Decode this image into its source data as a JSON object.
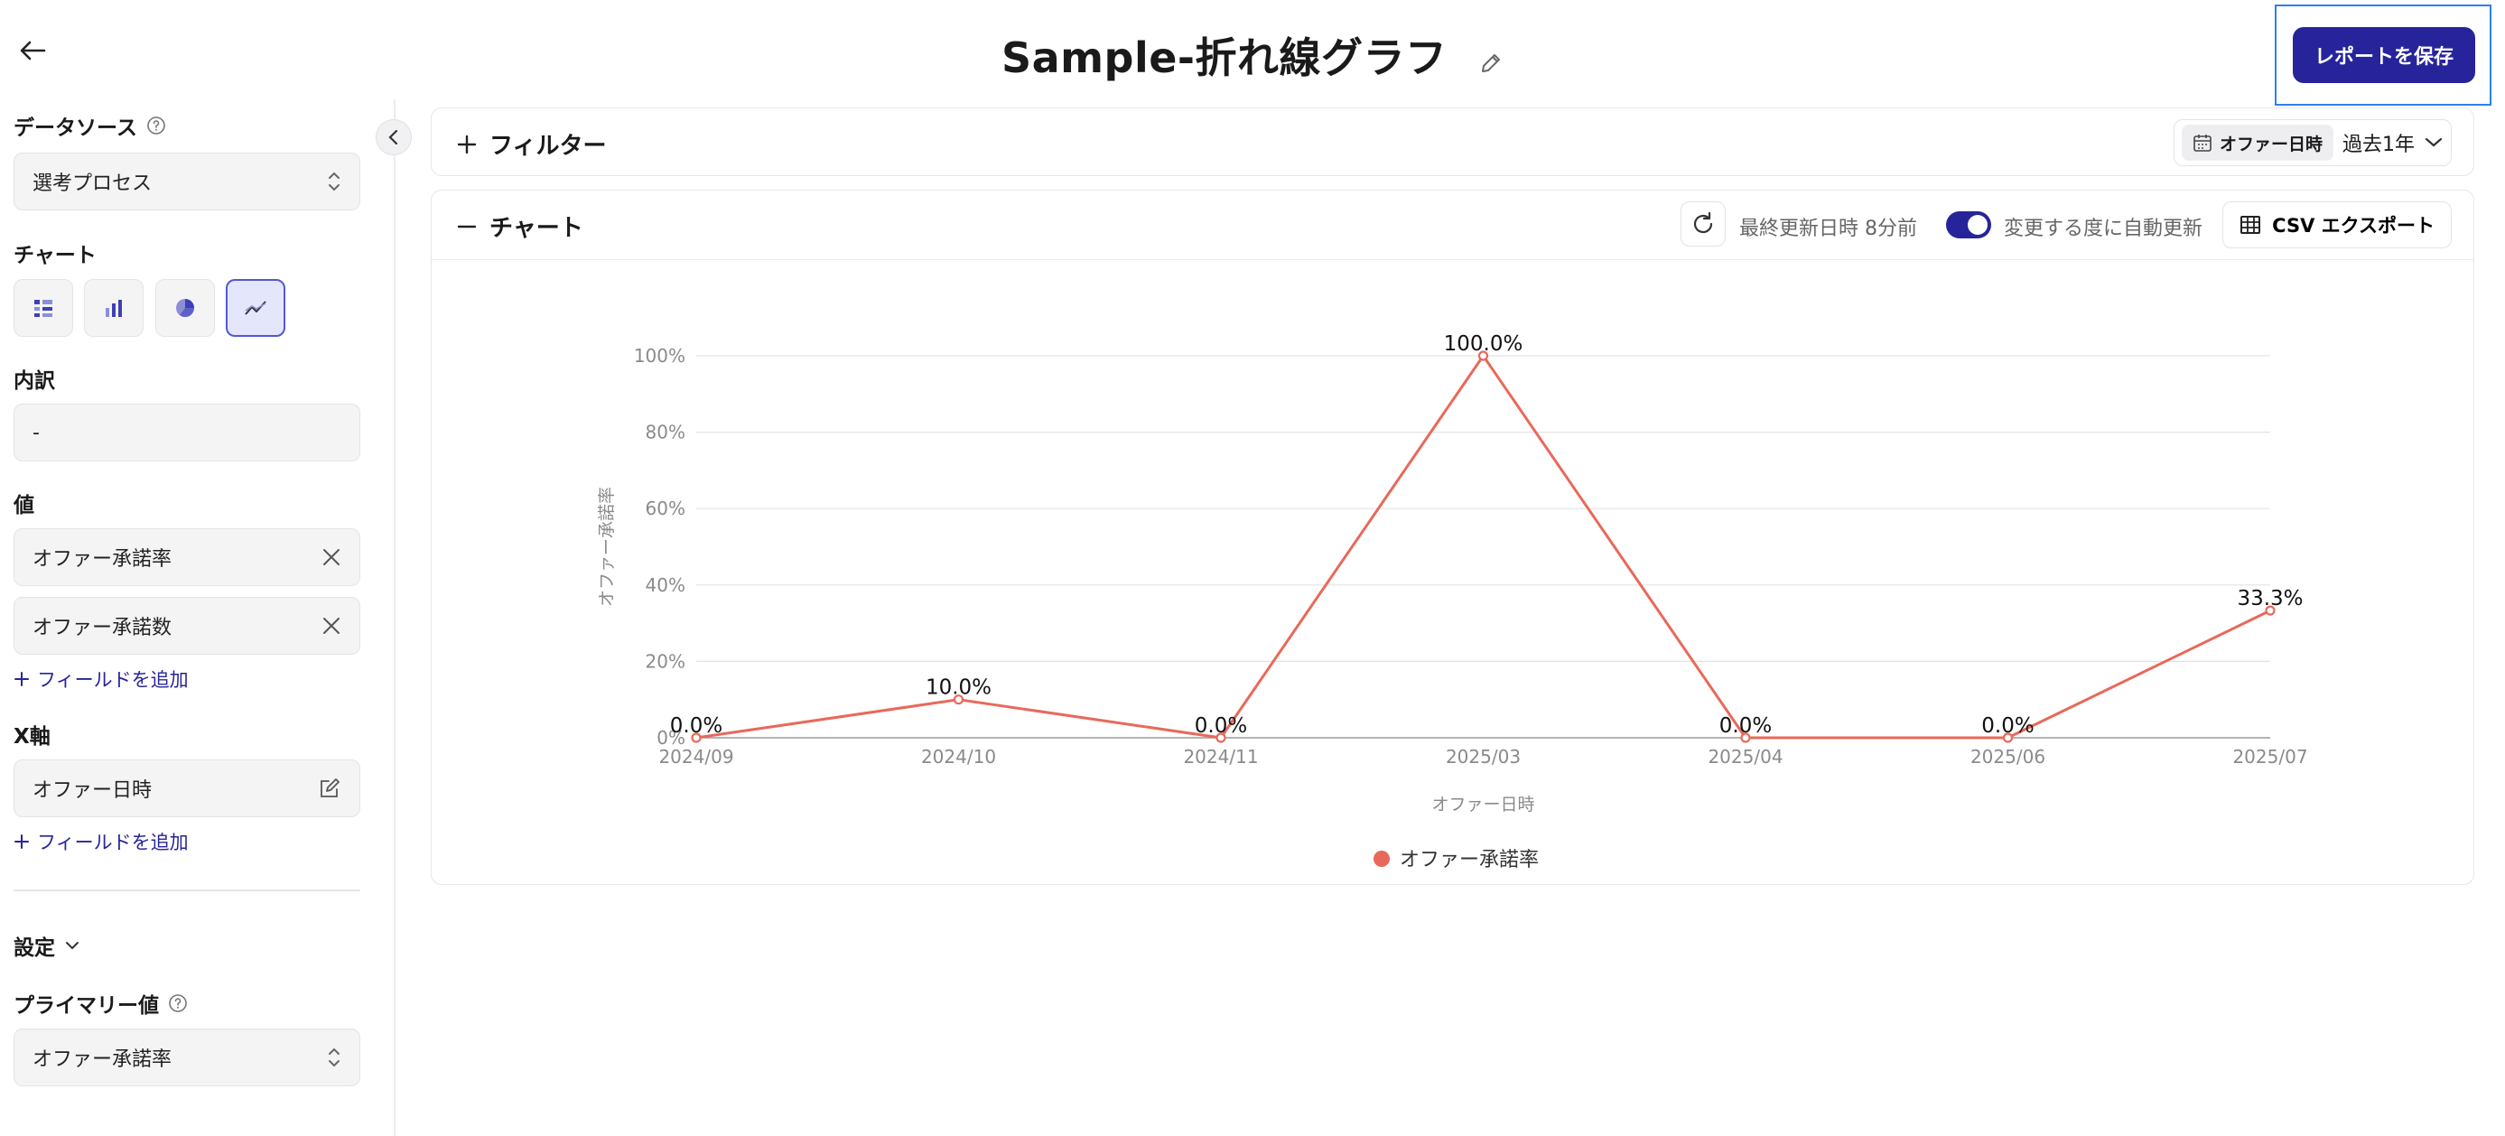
{
  "header": {
    "title": "Sample-折れ線グラフ",
    "save_label": "レポートを保存"
  },
  "sidebar": {
    "data_source": {
      "label": "データソース",
      "value": "選考プロセス"
    },
    "chart": {
      "label": "チャート",
      "types": [
        "table-chart",
        "bar-chart",
        "pie-chart",
        "line-chart"
      ],
      "selected": "line-chart"
    },
    "breakdown": {
      "label": "内訳",
      "value": "-"
    },
    "values": {
      "label": "値",
      "items": [
        "オファー承諾率",
        "オファー承諾数"
      ],
      "add_label": "フィールドを追加"
    },
    "x_axis": {
      "label": "X軸",
      "value": "オファー日時",
      "add_label": "フィールドを追加"
    },
    "settings": {
      "label": "設定"
    },
    "primary_value": {
      "label": "プライマリー値",
      "value": "オファー承諾率"
    }
  },
  "filter": {
    "label": "フィルター",
    "date_field": "オファー日時",
    "range": "過去1年"
  },
  "chart_panel": {
    "label": "チャート",
    "updated": "最終更新日時 8分前",
    "auto_update": "変更する度に自動更新",
    "auto_update_on": true,
    "csv_label": "CSV エクスポート"
  },
  "colors": {
    "accent": "#27249b",
    "series": "#e8695a"
  },
  "chart_data": {
    "type": "line",
    "x": [
      "2024/09",
      "2024/10",
      "2024/11",
      "2025/03",
      "2025/04",
      "2025/06",
      "2025/07"
    ],
    "series": [
      {
        "name": "オファー承諾率",
        "values": [
          0,
          10,
          0,
          100,
          0,
          0,
          33.3
        ]
      }
    ],
    "data_labels": [
      "0.0%",
      "10.0%",
      "0.0%",
      "100.0%",
      "0.0%",
      "0.0%",
      "33.3%"
    ],
    "y_ticks": [
      "0%",
      "20%",
      "40%",
      "60%",
      "80%",
      "100%"
    ],
    "ylim": [
      0,
      100
    ],
    "xlabel": "オファー日時",
    "ylabel": "オファー承諾率",
    "grid": true,
    "legend": "bottom"
  }
}
